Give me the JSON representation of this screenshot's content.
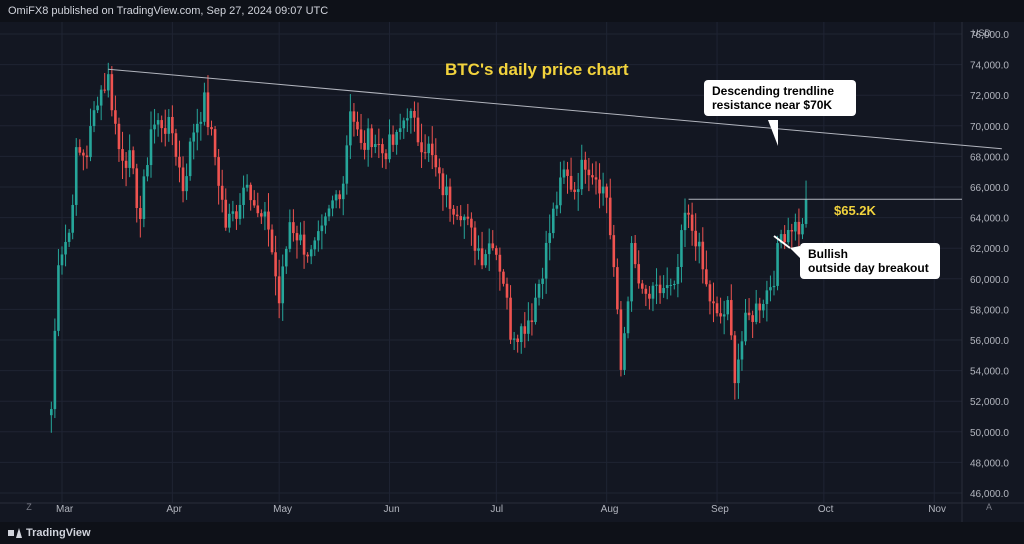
{
  "header": {
    "publisher_text": "OmiFX8 published on TradingView.com, Sep 27, 2024 09:07 UTC"
  },
  "footer": {
    "logo_text": "TradingView",
    "zoom_label": "A",
    "goto_label": "Z"
  },
  "chart_data": {
    "type": "candlestick",
    "title": "BTC's daily price chart",
    "currency_label": "USD",
    "ylim": [
      46000,
      77000
    ],
    "y_ticks": [
      "46,000.0",
      "48,000.0",
      "50,000.0",
      "52,000.0",
      "54,000.0",
      "56,000.0",
      "58,000.0",
      "60,000.0",
      "62,000.0",
      "64,000.0",
      "66,000.0",
      "68,000.0",
      "70,000.0",
      "72,000.0",
      "74,000.0",
      "76,000.0"
    ],
    "x_ticks": [
      "Mar",
      "Apr",
      "May",
      "Jun",
      "Jul",
      "Aug",
      "Sep",
      "Oct",
      "Nov"
    ],
    "price_anchors": [
      {
        "date": "2024-02-27",
        "close": 51500
      },
      {
        "date": "2024-02-29",
        "close": 61500
      },
      {
        "date": "2024-03-03",
        "close": 63000
      },
      {
        "date": "2024-03-05",
        "close": 68000
      },
      {
        "date": "2024-03-08",
        "close": 68300
      },
      {
        "date": "2024-03-11",
        "close": 72000
      },
      {
        "date": "2024-03-14",
        "close": 73100
      },
      {
        "date": "2024-03-17",
        "close": 68500
      },
      {
        "date": "2024-03-20",
        "close": 67700
      },
      {
        "date": "2024-03-23",
        "close": 64000
      },
      {
        "date": "2024-03-26",
        "close": 69900
      },
      {
        "date": "2024-03-29",
        "close": 70200
      },
      {
        "date": "2024-04-01",
        "close": 69600
      },
      {
        "date": "2024-04-04",
        "close": 66000
      },
      {
        "date": "2024-04-07",
        "close": 69800
      },
      {
        "date": "2024-04-10",
        "close": 71500
      },
      {
        "date": "2024-04-13",
        "close": 68000
      },
      {
        "date": "2024-04-16",
        "close": 63500
      },
      {
        "date": "2024-04-19",
        "close": 64500
      },
      {
        "date": "2024-04-22",
        "close": 66800
      },
      {
        "date": "2024-04-25",
        "close": 64000
      },
      {
        "date": "2024-04-28",
        "close": 63500
      },
      {
        "date": "2024-05-01",
        "close": 58500
      },
      {
        "date": "2024-05-04",
        "close": 63800
      },
      {
        "date": "2024-05-07",
        "close": 62500
      },
      {
        "date": "2024-05-10",
        "close": 61500
      },
      {
        "date": "2024-05-13",
        "close": 62800
      },
      {
        "date": "2024-05-16",
        "close": 64900
      },
      {
        "date": "2024-05-19",
        "close": 66500
      },
      {
        "date": "2024-05-21",
        "close": 71400
      },
      {
        "date": "2024-05-24",
        "close": 68500
      },
      {
        "date": "2024-05-27",
        "close": 69400
      },
      {
        "date": "2024-05-30",
        "close": 68300
      },
      {
        "date": "2024-06-03",
        "close": 69000
      },
      {
        "date": "2024-06-06",
        "close": 71100
      },
      {
        "date": "2024-06-09",
        "close": 69300
      },
      {
        "date": "2024-06-12",
        "close": 68500
      },
      {
        "date": "2024-06-15",
        "close": 66300
      },
      {
        "date": "2024-06-18",
        "close": 65100
      },
      {
        "date": "2024-06-21",
        "close": 64600
      },
      {
        "date": "2024-06-24",
        "close": 62800
      },
      {
        "date": "2024-06-27",
        "close": 61600
      },
      {
        "date": "2024-06-30",
        "close": 62700
      },
      {
        "date": "2024-07-03",
        "close": 60000
      },
      {
        "date": "2024-07-05",
        "close": 56600
      },
      {
        "date": "2024-07-08",
        "close": 56700
      },
      {
        "date": "2024-07-11",
        "close": 57800
      },
      {
        "date": "2024-07-14",
        "close": 60800
      },
      {
        "date": "2024-07-17",
        "close": 64200
      },
      {
        "date": "2024-07-20",
        "close": 66800
      },
      {
        "date": "2024-07-23",
        "close": 65900
      },
      {
        "date": "2024-07-26",
        "close": 67800
      },
      {
        "date": "2024-07-29",
        "close": 66800
      },
      {
        "date": "2024-08-01",
        "close": 65400
      },
      {
        "date": "2024-08-03",
        "close": 60700
      },
      {
        "date": "2024-08-05",
        "close": 54000
      },
      {
        "date": "2024-08-08",
        "close": 61700
      },
      {
        "date": "2024-08-11",
        "close": 58700
      },
      {
        "date": "2024-08-14",
        "close": 58800
      },
      {
        "date": "2024-08-17",
        "close": 59400
      },
      {
        "date": "2024-08-20",
        "close": 59000
      },
      {
        "date": "2024-08-23",
        "close": 64100
      },
      {
        "date": "2024-08-26",
        "close": 62800
      },
      {
        "date": "2024-08-29",
        "close": 59400
      },
      {
        "date": "2024-09-01",
        "close": 57300
      },
      {
        "date": "2024-09-04",
        "close": 58000
      },
      {
        "date": "2024-09-06",
        "close": 53900
      },
      {
        "date": "2024-09-09",
        "close": 57000
      },
      {
        "date": "2024-09-12",
        "close": 58100
      },
      {
        "date": "2024-09-15",
        "close": 59200
      },
      {
        "date": "2024-09-17",
        "close": 60300
      },
      {
        "date": "2024-09-19",
        "close": 62900
      },
      {
        "date": "2024-09-22",
        "close": 63600
      },
      {
        "date": "2024-09-25",
        "close": 63200
      },
      {
        "date": "2024-09-26",
        "close": 65200
      }
    ],
    "annotations": {
      "trendline": {
        "start": {
          "date": "2024-03-14",
          "price": 73700
        },
        "end": {
          "date": "2024-11-20",
          "price": 68500
        }
      },
      "resistance_line": {
        "start_date": "2024-08-24",
        "price": 65200
      },
      "price_label": "$65.2K",
      "trend_callout": [
        "Descending trendline",
        "resistance near $70K"
      ],
      "breakout_callout": [
        "Bullish",
        "outside day breakout"
      ]
    },
    "colors": {
      "up": "#26a69a",
      "down": "#ef5350",
      "background": "#131722",
      "grid": "#1f2433",
      "accent": "#f2d33d"
    },
    "grid": true
  }
}
